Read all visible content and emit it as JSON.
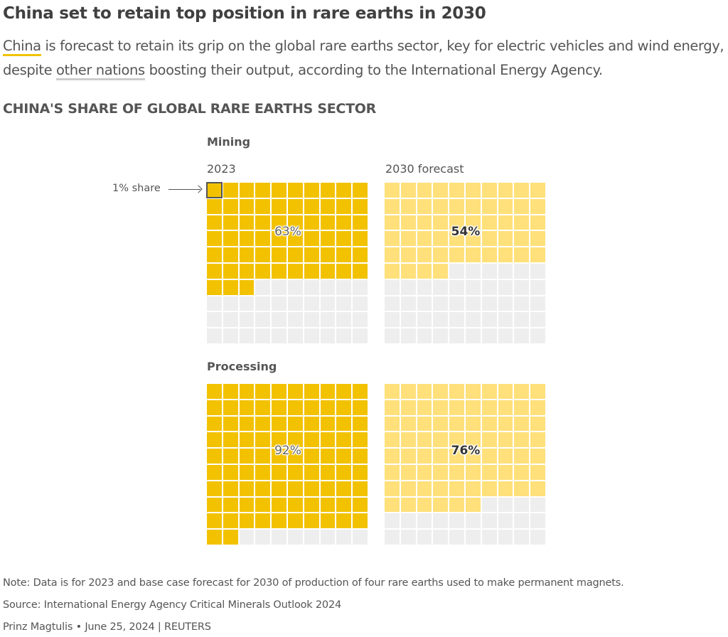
{
  "header": {
    "title": "China set to retain top position in rare earths in 2030",
    "subtitle_parts": {
      "china": "China",
      "part1": " is forecast to retain its grip on the global rare earths sector, key for electric vehicles and wind energy, despite ",
      "other_nations": "other nations",
      "part2": " boosting their output, according to the International Energy Agency."
    }
  },
  "colors": {
    "china_2023": "#F2C200",
    "china_2030": "#FFE07A",
    "other": "#EEEEEE",
    "china_legend": "#F2C200",
    "other_legend": "#CCCCCC"
  },
  "chart_data": {
    "type": "waffle",
    "title": "CHINA'S SHARE OF GLOBAL RARE EARTHS SECTOR",
    "units": "percent of 100-square grid (1 square = 1% share)",
    "annotation": "1% share",
    "columns": [
      "2023",
      "2030 forecast"
    ],
    "groups": [
      {
        "name": "Mining",
        "values": {
          "2023": 63,
          "2030 forecast": 54
        },
        "labels": {
          "2023": "63%",
          "2030 forecast": "54%"
        }
      },
      {
        "name": "Processing",
        "values": {
          "2023": 92,
          "2030 forecast": 76
        },
        "labels": {
          "2023": "92%",
          "2030 forecast": "76%"
        }
      }
    ],
    "legend": [
      {
        "name": "China",
        "color": "#F2C200"
      },
      {
        "name": "Other nations",
        "color": "#CCCCCC"
      }
    ]
  },
  "footer": {
    "note": "Note: Data is for 2023 and base case forecast for 2030 of production of four rare earths used to make permanent magnets.",
    "source": "Source: International Energy Agency Critical Minerals Outlook 2024",
    "credit": "Prinz Magtulis • June 25, 2024 | REUTERS"
  }
}
